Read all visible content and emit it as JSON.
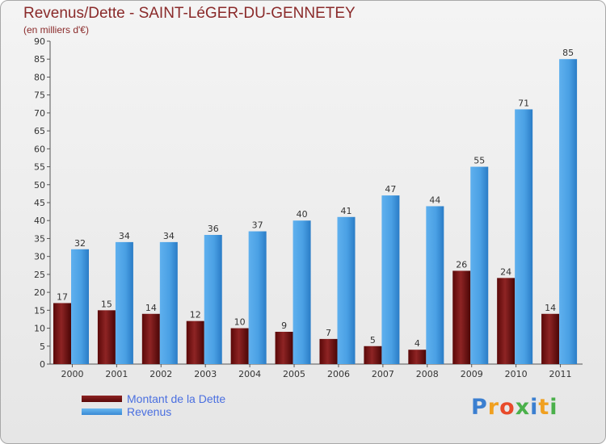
{
  "header": {
    "title": "Revenus/Dette - SAINT-LéGER-DU-GENNETEY",
    "subtitle": "(en milliers d'€)"
  },
  "chart_data": {
    "type": "bar",
    "title": "Revenus/Dette - SAINT-LéGER-DU-GENNETEY",
    "subtitle": "(en milliers d'€)",
    "categories": [
      "2000",
      "2001",
      "2002",
      "2003",
      "2004",
      "2005",
      "2006",
      "2007",
      "2008",
      "2009",
      "2010",
      "2011"
    ],
    "series": [
      {
        "name": "Montant de la Dette",
        "color": "#7a0f0f",
        "values": [
          17,
          15,
          14,
          12,
          10,
          9,
          7,
          5,
          4,
          26,
          24,
          14
        ]
      },
      {
        "name": "Revenus",
        "color": "#4fa3e6",
        "values": [
          32,
          34,
          34,
          36,
          37,
          40,
          41,
          47,
          44,
          55,
          71,
          85
        ]
      }
    ],
    "ylim": [
      0,
      90
    ],
    "ytick_step": 5,
    "grid": false,
    "legend_position": "bottom-left"
  },
  "logo": {
    "letters": [
      "P",
      "r",
      "o",
      "x",
      "i",
      "t",
      "i"
    ],
    "colors": [
      "#3b7fd0",
      "#f0a020",
      "#e84a2a",
      "#4ab04a",
      "#3b7fd0",
      "#f0a020",
      "#4ab04a"
    ]
  }
}
